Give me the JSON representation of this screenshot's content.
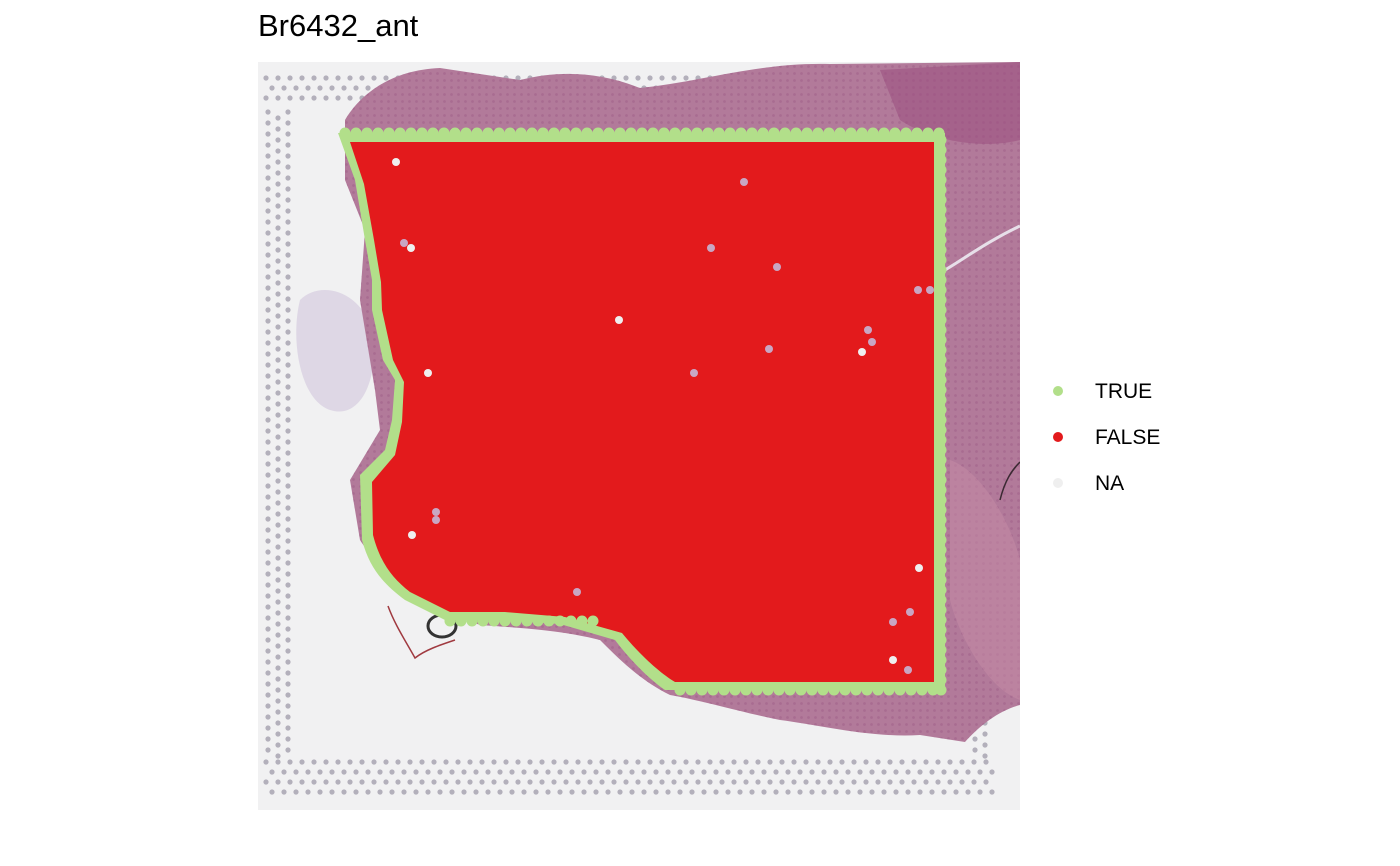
{
  "chart_data": {
    "type": "scatter",
    "title": "Br6432_ant",
    "background": "H&E stained tissue section image with Visium spot grid",
    "legend": {
      "position": "right",
      "entries": [
        {
          "label": "TRUE",
          "color": "#b2df8a"
        },
        {
          "label": "FALSE",
          "color": "#e31a1c"
        },
        {
          "label": "NA",
          "color": "#efefef"
        }
      ]
    },
    "series": [
      {
        "name": "TRUE",
        "role": "tissue-edge spots",
        "color": "#b2df8a"
      },
      {
        "name": "FALSE",
        "role": "interior spots",
        "color": "#e31a1c"
      },
      {
        "name": "NA",
        "role": "unassigned spots",
        "color": "#efefef"
      }
    ]
  },
  "colors": {
    "tissue": "#b27a9a",
    "tissue_dark": "#8e4f78",
    "slide_bg": "#f1f1f2",
    "fiducial": "#b3b0bb"
  }
}
